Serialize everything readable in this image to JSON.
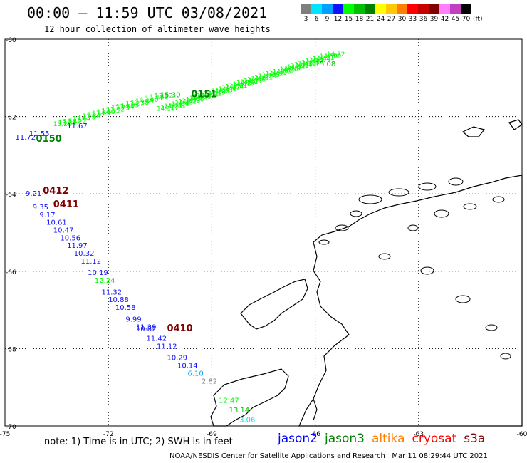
{
  "title": "00:00 — 11:59 UTC 03/08/2021",
  "subtitle": "12 hour collection of altimeter wave heights",
  "color_scale": {
    "unit": "(ft)",
    "bins": [
      {
        "label": "3",
        "color": "#7f7f7f"
      },
      {
        "label": "6",
        "color": "#00e5ff"
      },
      {
        "label": "9",
        "color": "#00a0ff"
      },
      {
        "label": "12",
        "color": "#1010ff"
      },
      {
        "label": "15",
        "color": "#00ff00"
      },
      {
        "label": "18",
        "color": "#00bf00"
      },
      {
        "label": "21",
        "color": "#008000"
      },
      {
        "label": "24",
        "color": "#ffff00"
      },
      {
        "label": "27",
        "color": "#ffc800"
      },
      {
        "label": "30",
        "color": "#ff8000"
      },
      {
        "label": "33",
        "color": "#ff0000"
      },
      {
        "label": "36",
        "color": "#c80000"
      },
      {
        "label": "39",
        "color": "#800000"
      },
      {
        "label": "42",
        "color": "#ff80ff"
      },
      {
        "label": "45",
        "color": "#c040c0"
      },
      {
        "label": "70",
        "color": "#000000"
      }
    ]
  },
  "chart_data": {
    "type": "scatter",
    "title": "12 hour collection of altimeter wave heights",
    "xlim": [
      -75,
      -60
    ],
    "ylim": [
      -70,
      -60
    ],
    "x_ticks": [
      "-75",
      "-72",
      "-69",
      "-66",
      "-63",
      "-60"
    ],
    "y_ticks": [
      "-60",
      "-62",
      "-64",
      "-66",
      "-68",
      "-70"
    ],
    "grid": true,
    "wave_height_labels": [
      {
        "lon": -74.7,
        "lat": -62.6,
        "text": "11.72",
        "color": "#1010ff"
      },
      {
        "lon": -74.3,
        "lat": -62.5,
        "text": "11.55",
        "color": "#1010ff"
      },
      {
        "lon": -73.2,
        "lat": -62.3,
        "text": "11.67",
        "color": "#1010ff"
      },
      {
        "lon": -70.5,
        "lat": -61.5,
        "text": "15.30",
        "color": "#00bf00"
      },
      {
        "lon": -66.0,
        "lat": -60.7,
        "text": "15.08",
        "color": "#00bf00"
      },
      {
        "lon": -74.4,
        "lat": -64.05,
        "text": "9.21",
        "color": "#1010ff"
      },
      {
        "lon": -74.2,
        "lat": -64.4,
        "text": "9.35",
        "color": "#1010ff"
      },
      {
        "lon": -74.0,
        "lat": -64.6,
        "text": "9.17",
        "color": "#1010ff"
      },
      {
        "lon": -73.8,
        "lat": -64.8,
        "text": "10.61",
        "color": "#1010ff"
      },
      {
        "lon": -73.6,
        "lat": -65.0,
        "text": "10.47",
        "color": "#1010ff"
      },
      {
        "lon": -73.4,
        "lat": -65.2,
        "text": "10.56",
        "color": "#1010ff"
      },
      {
        "lon": -73.2,
        "lat": -65.4,
        "text": "11.97",
        "color": "#1010ff"
      },
      {
        "lon": -73.0,
        "lat": -65.6,
        "text": "10.32",
        "color": "#1010ff"
      },
      {
        "lon": -72.8,
        "lat": -65.8,
        "text": "11.12",
        "color": "#1010ff"
      },
      {
        "lon": -72.6,
        "lat": -66.1,
        "text": "10.19",
        "color": "#1010ff"
      },
      {
        "lon": -72.4,
        "lat": -66.3,
        "text": "12.24",
        "color": "#00ff00"
      },
      {
        "lon": -72.2,
        "lat": -66.6,
        "text": "11.32",
        "color": "#1010ff"
      },
      {
        "lon": -72.0,
        "lat": -66.8,
        "text": "10.88",
        "color": "#1010ff"
      },
      {
        "lon": -71.8,
        "lat": -67.0,
        "text": "10.58",
        "color": "#1010ff"
      },
      {
        "lon": -71.5,
        "lat": -67.3,
        "text": "9.99",
        "color": "#1010ff"
      },
      {
        "lon": -71.2,
        "lat": -67.5,
        "text": "11.39",
        "color": "#1010ff"
      },
      {
        "lon": -71.2,
        "lat": -67.55,
        "text": "10.82",
        "color": "#1010ff"
      },
      {
        "lon": -70.9,
        "lat": -67.8,
        "text": "11.42",
        "color": "#1010ff"
      },
      {
        "lon": -70.6,
        "lat": -68.0,
        "text": "11.12",
        "color": "#1010ff"
      },
      {
        "lon": -70.3,
        "lat": -68.3,
        "text": "10.29",
        "color": "#1010ff"
      },
      {
        "lon": -70.0,
        "lat": -68.5,
        "text": "10.14",
        "color": "#1010ff"
      },
      {
        "lon": -69.7,
        "lat": -68.7,
        "text": "6.10",
        "color": "#00a0ff"
      },
      {
        "lon": -69.3,
        "lat": -68.9,
        "text": "2.82",
        "color": "#7f7f7f"
      },
      {
        "lon": -68.8,
        "lat": -69.4,
        "text": "12.47",
        "color": "#00ff00"
      },
      {
        "lon": -68.5,
        "lat": -69.65,
        "text": "13.14",
        "color": "#00bf00"
      },
      {
        "lon": -68.2,
        "lat": -69.9,
        "text": "3.06",
        "color": "#00e5ff"
      }
    ],
    "pass_labels": [
      {
        "lon": -73.9,
        "lat": -64.0,
        "text": "0412",
        "color": "#800000"
      },
      {
        "lon": -73.6,
        "lat": -64.35,
        "text": "0411",
        "color": "#800000"
      },
      {
        "lon": -70.3,
        "lat": -67.55,
        "text": "0410",
        "color": "#800000"
      },
      {
        "lon": -74.1,
        "lat": -62.65,
        "text": "0150",
        "color": "#008000"
      },
      {
        "lon": -69.6,
        "lat": -61.5,
        "text": "0151",
        "color": "#008000"
      }
    ],
    "legend": [
      "jason2",
      "jason3",
      "altika",
      "cryosat",
      "s3a"
    ]
  },
  "satellites": [
    {
      "name": "jason2",
      "color": "#0000ff"
    },
    {
      "name": "jason3",
      "color": "#008000"
    },
    {
      "name": "altika",
      "color": "#ff8000"
    },
    {
      "name": "cryosat",
      "color": "#ff0000"
    },
    {
      "name": "s3a",
      "color": "#800000"
    }
  ],
  "footer_note": "note: 1) Time is in UTC; 2) SWH is in feet",
  "credit": "NOAA/NESDIS Center for Satellite Applications and Research   Mar 11 08:29:44 UTC 2021"
}
